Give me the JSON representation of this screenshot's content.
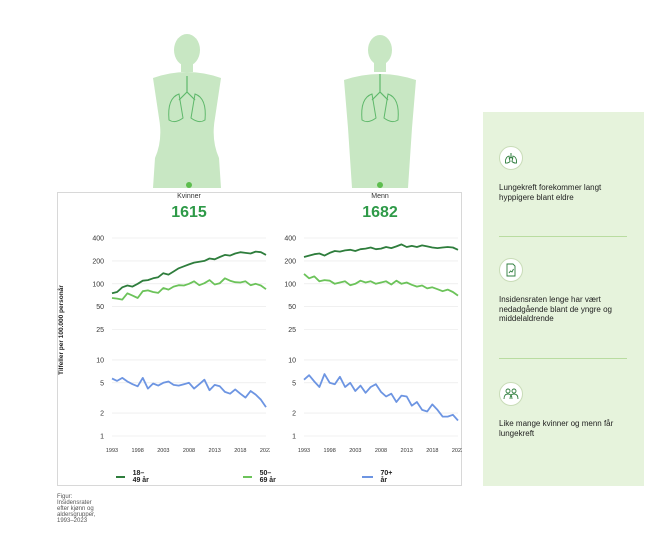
{
  "women": {
    "label": "Kvinner",
    "count": "1615"
  },
  "men": {
    "label": "Menn",
    "count": "1682"
  },
  "y_axis_label": "Tilfeller per 100.000 personår",
  "caption": "Figur: Insidensrater efter kjønn og aldersgrupper, 1993–2023",
  "colors": {
    "silhouette": "#c8e7c3",
    "lung": "#5fb86b",
    "young": "#2e7d3c",
    "mid": "#6cc35a",
    "old": "#6d95e2",
    "accent": "#2e9a48"
  },
  "side_items": [
    {
      "icon": "lungs-icon",
      "text": "Lungekreft forekommer langt hyppigere blant eldre"
    },
    {
      "icon": "document-chart-icon",
      "text": "Insidensraten lenge har vært nedadgående blant de yngre og middelaldrende"
    },
    {
      "icon": "people-icon",
      "text": "Like mange kvinner og menn får lungekreft"
    }
  ],
  "chart_data": [
    {
      "type": "line",
      "title": "Kvinner",
      "y_scale": "log",
      "ylim": [
        1,
        400
      ],
      "yticks": [
        1,
        2,
        5,
        10,
        25,
        50,
        100,
        200,
        400
      ],
      "xlim": [
        1993,
        2023
      ],
      "xticks": [
        1993,
        1998,
        2003,
        2008,
        2013,
        2018,
        2023
      ],
      "x": [
        1993,
        1994,
        1995,
        1996,
        1997,
        1998,
        1999,
        2000,
        2001,
        2002,
        2003,
        2004,
        2005,
        2006,
        2007,
        2008,
        2009,
        2010,
        2011,
        2012,
        2013,
        2014,
        2015,
        2016,
        2017,
        2018,
        2019,
        2020,
        2021,
        2022,
        2023
      ],
      "series": [
        {
          "name": "18–49 år",
          "color": "#2e7d3c",
          "values": [
            75,
            78,
            90,
            95,
            92,
            100,
            110,
            112,
            118,
            122,
            138,
            132,
            145,
            160,
            170,
            180,
            190,
            195,
            200,
            215,
            210,
            225,
            240,
            235,
            250,
            260,
            255,
            250,
            265,
            260,
            240
          ]
        },
        {
          "name": "50–69 år",
          "color": "#6cc35a",
          "values": [
            65,
            64,
            62,
            75,
            70,
            65,
            80,
            82,
            78,
            76,
            88,
            84,
            92,
            96,
            95,
            100,
            108,
            96,
            102,
            112,
            98,
            102,
            118,
            110,
            105,
            104,
            108,
            96,
            100,
            95,
            85
          ]
        },
        {
          "name": "70+ år",
          "color": "#6d95e2",
          "values": [
            5.7,
            5.3,
            5.8,
            5.2,
            4.8,
            4.5,
            5.8,
            4.2,
            4.9,
            4.6,
            5.0,
            5.2,
            4.7,
            4.6,
            4.8,
            5.0,
            4.2,
            4.8,
            5.5,
            4.0,
            4.7,
            4.5,
            3.8,
            3.6,
            4.1,
            3.6,
            3.2,
            3.9,
            3.5,
            3.0,
            2.4
          ]
        }
      ]
    },
    {
      "type": "line",
      "title": "Menn",
      "y_scale": "log",
      "ylim": [
        1,
        400
      ],
      "yticks": [
        1,
        2,
        5,
        10,
        25,
        50,
        100,
        200,
        400
      ],
      "xlim": [
        1993,
        2023
      ],
      "xticks": [
        1993,
        1998,
        2003,
        2008,
        2013,
        2018,
        2023
      ],
      "x": [
        1993,
        1994,
        1995,
        1996,
        1997,
        1998,
        1999,
        2000,
        2001,
        2002,
        2003,
        2004,
        2005,
        2006,
        2007,
        2008,
        2009,
        2010,
        2011,
        2012,
        2013,
        2014,
        2015,
        2016,
        2017,
        2018,
        2019,
        2020,
        2021,
        2022,
        2023
      ],
      "series": [
        {
          "name": "18–49 år",
          "color": "#2e7d3c",
          "values": [
            225,
            235,
            245,
            250,
            235,
            255,
            270,
            265,
            275,
            280,
            270,
            285,
            290,
            300,
            285,
            290,
            305,
            295,
            310,
            330,
            305,
            315,
            305,
            320,
            310,
            300,
            295,
            300,
            305,
            300,
            280
          ]
        },
        {
          "name": "50–69 år",
          "color": "#6cc35a",
          "values": [
            135,
            118,
            125,
            108,
            112,
            110,
            100,
            104,
            108,
            96,
            100,
            110,
            104,
            108,
            100,
            104,
            108,
            98,
            110,
            100,
            104,
            97,
            92,
            95,
            87,
            90,
            85,
            80,
            84,
            78,
            70
          ]
        },
        {
          "name": "70+ år",
          "color": "#6d95e2",
          "values": [
            5.5,
            6.3,
            5.2,
            4.4,
            6.5,
            5.0,
            4.8,
            6.0,
            4.4,
            5.0,
            3.9,
            4.6,
            3.7,
            4.4,
            4.8,
            3.8,
            3.3,
            3.6,
            2.8,
            3.4,
            3.3,
            2.5,
            2.8,
            2.2,
            2.1,
            2.6,
            2.2,
            1.8,
            1.8,
            1.9,
            1.6
          ]
        }
      ]
    }
  ]
}
